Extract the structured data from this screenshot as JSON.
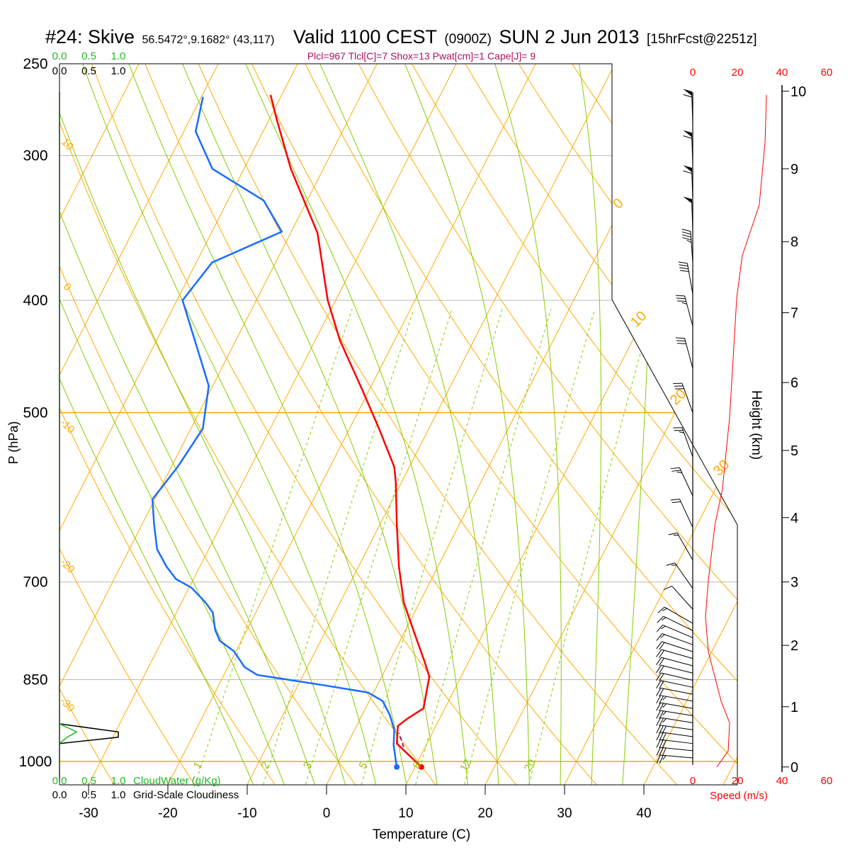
{
  "title": {
    "station": "#24: Skive",
    "coords": "56.5472°,9.1682° (43,117)",
    "valid": "Valid 1100 CEST",
    "utc": "(0900Z)",
    "date": "SUN 2 Jun 2013",
    "forecast": "[15hrFcst@2251z]"
  },
  "indices": "Plcl=967 Tlcl[C]=7 Shox=13 Pwat[cm]=1 Cape[J]= 9",
  "colors": {
    "temperature": "#ff0000",
    "dewpoint": "#1a6cff",
    "parcel": "#8b1a6b",
    "isotherm": "#ffaa00",
    "moist": "#88cc00",
    "cloudwater": "#22bb22",
    "indices": "#b0105a"
  },
  "chart_data": {
    "type": "line",
    "subtype": "skew-T log-P",
    "xlabel": "Temperature (C)",
    "ylabel": "P (hPa)",
    "y2label": "Height (km)",
    "speed_label": "Speed (m/s)",
    "pressure_range": [
      1047,
      250
    ],
    "pressure_ticks": [
      250,
      300,
      400,
      500,
      700,
      850,
      1000
    ],
    "temperature_ticks": [
      -30,
      -20,
      -10,
      0,
      10,
      20,
      30,
      40
    ],
    "speed_ticks_top": [
      "0",
      "20",
      "40",
      "60"
    ],
    "speed_ticks_bottom": [
      "0",
      "20",
      "40",
      "60"
    ],
    "height_ticks": [
      {
        "km": "0",
        "p": 1011
      },
      {
        "km": "1",
        "p": 897
      },
      {
        "km": "2",
        "p": 794
      },
      {
        "km": "3",
        "p": 700
      },
      {
        "km": "4",
        "p": 616
      },
      {
        "km": "5",
        "p": 539
      },
      {
        "km": "6",
        "p": 471
      },
      {
        "km": "7",
        "p": 410
      },
      {
        "km": "8",
        "p": 356
      },
      {
        "km": "9",
        "p": 308
      },
      {
        "km": "10",
        "p": 264
      }
    ],
    "cloud_scale_top_green": [
      "0.0",
      "0.5",
      "1.0"
    ],
    "cloud_scale_top_black": [
      "0.0",
      "0.5",
      "1.0"
    ],
    "cloud_scale_bottom_green": [
      "0.0",
      "0.5",
      "1.0"
    ],
    "cloud_scale_bottom_black": [
      "0.0",
      "0.5",
      "1.0"
    ],
    "cloudwater_label": "CloudWater (g/Kg)",
    "cloudiness_label": "Grid-Scale Cloudiness",
    "cloud_profile": [
      {
        "p": 928,
        "cloudiness": 0.0,
        "cloudwater": 0.0
      },
      {
        "p": 943,
        "cloudiness": 1.0,
        "cloudwater": 0.29
      },
      {
        "p": 953,
        "cloudiness": 1.0,
        "cloudwater": 0.13
      },
      {
        "p": 965,
        "cloudiness": 0.0,
        "cloudwater": 0.0
      }
    ],
    "series": [
      {
        "name": "temperature",
        "points": [
          [
            1011,
            10.8
          ],
          [
            965,
            6.2
          ],
          [
            932,
            5.2
          ],
          [
            919,
            5.9
          ],
          [
            900,
            7.3
          ],
          [
            845,
            6.0
          ],
          [
            821,
            4.5
          ],
          [
            776,
            1.4
          ],
          [
            729,
            -2.0
          ],
          [
            679,
            -4.9
          ],
          [
            624,
            -7.9
          ],
          [
            573,
            -10.8
          ],
          [
            557,
            -11.9
          ],
          [
            516,
            -16.3
          ],
          [
            477,
            -21.0
          ],
          [
            433,
            -26.9
          ],
          [
            400,
            -31.0
          ],
          [
            350,
            -36.6
          ],
          [
            308,
            -44.1
          ],
          [
            279,
            -49.1
          ],
          [
            266,
            -51.4
          ]
        ]
      },
      {
        "name": "dewpoint",
        "points": [
          [
            1011,
            7.7
          ],
          [
            968,
            5.9
          ],
          [
            939,
            5.0
          ],
          [
            912,
            3.5
          ],
          [
            887,
            1.7
          ],
          [
            872,
            -0.7
          ],
          [
            860,
            -6.5
          ],
          [
            842,
            -15.8
          ],
          [
            829,
            -17.9
          ],
          [
            803,
            -20.3
          ],
          [
            787,
            -22.7
          ],
          [
            770,
            -24.0
          ],
          [
            744,
            -25.4
          ],
          [
            729,
            -27.0
          ],
          [
            708,
            -29.7
          ],
          [
            696,
            -32.2
          ],
          [
            679,
            -34.2
          ],
          [
            656,
            -36.5
          ],
          [
            624,
            -38.5
          ],
          [
            594,
            -40.3
          ],
          [
            557,
            -39.2
          ],
          [
            516,
            -38.5
          ],
          [
            474,
            -40.5
          ],
          [
            400,
            -49.3
          ],
          [
            371,
            -48.0
          ],
          [
            349,
            -41.2
          ],
          [
            328,
            -45.5
          ],
          [
            308,
            -54.0
          ],
          [
            286,
            -58.5
          ],
          [
            267,
            -59.8
          ]
        ]
      },
      {
        "name": "parcel",
        "points": [
          [
            972,
            7.3
          ],
          [
            945,
            5.8
          ]
        ]
      }
    ],
    "wind_speed_profile": [
      [
        1011,
        10.8
      ],
      [
        979,
        15.9
      ],
      [
        926,
        16.5
      ],
      [
        887,
        12.7
      ],
      [
        804,
        7.0
      ],
      [
        750,
        5.7
      ],
      [
        698,
        7.0
      ],
      [
        624,
        10.0
      ],
      [
        582,
        13.3
      ],
      [
        505,
        16.5
      ],
      [
        398,
        19.7
      ],
      [
        366,
        22.2
      ],
      [
        331,
        29.8
      ],
      [
        292,
        32.4
      ],
      [
        266,
        33.0
      ]
    ],
    "wind_barbs": [
      {
        "p": 281,
        "dir": 358,
        "speed": 32
      },
      {
        "p": 305,
        "dir": 358,
        "speed": 31
      },
      {
        "p": 327,
        "dir": 358,
        "speed": 30
      },
      {
        "p": 348,
        "dir": 358,
        "speed": 26
      },
      {
        "p": 371,
        "dir": 356,
        "speed": 23
      },
      {
        "p": 395,
        "dir": 350,
        "speed": 20
      },
      {
        "p": 421,
        "dir": 345,
        "speed": 17
      },
      {
        "p": 458,
        "dir": 345,
        "speed": 16
      },
      {
        "p": 500,
        "dir": 340,
        "speed": 16
      },
      {
        "p": 546,
        "dir": 340,
        "speed": 14
      },
      {
        "p": 590,
        "dir": 335,
        "speed": 12
      },
      {
        "p": 628,
        "dir": 335,
        "speed": 10
      },
      {
        "p": 670,
        "dir": 330,
        "speed": 8
      },
      {
        "p": 709,
        "dir": 325,
        "speed": 7
      },
      {
        "p": 739,
        "dir": 318,
        "speed": 6
      },
      {
        "p": 760,
        "dir": 300,
        "speed": 8
      },
      {
        "p": 771,
        "dir": 296,
        "speed": 8
      },
      {
        "p": 782,
        "dir": 293,
        "speed": 9
      },
      {
        "p": 793,
        "dir": 290,
        "speed": 9
      },
      {
        "p": 804,
        "dir": 288,
        "speed": 10
      },
      {
        "p": 815,
        "dir": 286,
        "speed": 10
      },
      {
        "p": 827,
        "dir": 285,
        "speed": 10
      },
      {
        "p": 839,
        "dir": 284,
        "speed": 10
      },
      {
        "p": 851,
        "dir": 283,
        "speed": 10
      },
      {
        "p": 863,
        "dir": 282,
        "speed": 11
      },
      {
        "p": 875,
        "dir": 281,
        "speed": 11
      },
      {
        "p": 887,
        "dir": 280,
        "speed": 12
      },
      {
        "p": 900,
        "dir": 280,
        "speed": 12
      },
      {
        "p": 913,
        "dir": 279,
        "speed": 13
      },
      {
        "p": 926,
        "dir": 279,
        "speed": 14
      },
      {
        "p": 939,
        "dir": 278,
        "speed": 15
      },
      {
        "p": 952,
        "dir": 278,
        "speed": 16
      },
      {
        "p": 965,
        "dir": 277,
        "speed": 16
      },
      {
        "p": 979,
        "dir": 276,
        "speed": 15
      },
      {
        "p": 993,
        "dir": 275,
        "speed": 12
      }
    ],
    "mixing_ratio_lines": [
      "1",
      "2",
      "3",
      "5",
      "8",
      "12",
      "20"
    ],
    "dry_adiabat_labels": [
      "10",
      "0",
      "-10",
      "-20",
      "-30"
    ],
    "isotherm_labels": [
      "0",
      "10",
      "20",
      "30"
    ],
    "grid": true
  }
}
